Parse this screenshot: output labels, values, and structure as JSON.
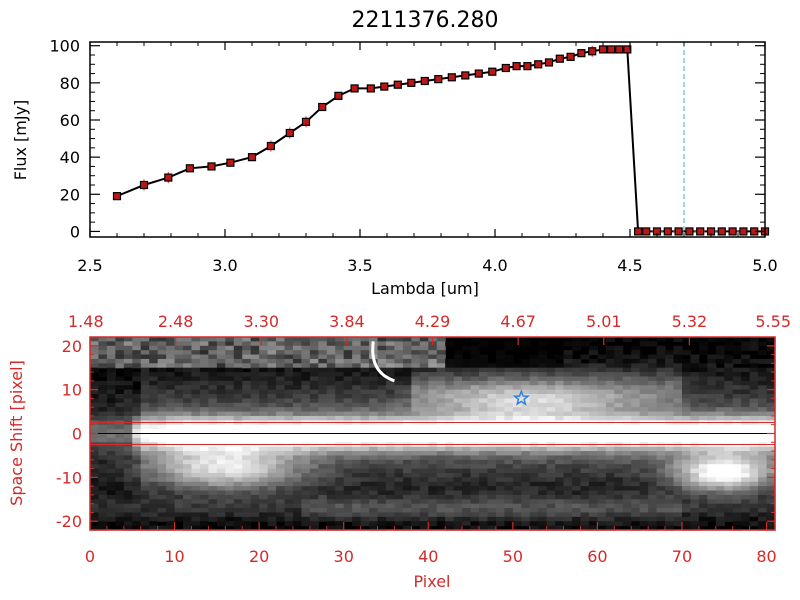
{
  "colors": {
    "red": "#d42a2a",
    "cyan": "#4fa8c8",
    "marker": "#b81818",
    "star": "#2f7fe0"
  },
  "chart_data": [
    {
      "type": "line",
      "title": "2211376.280",
      "xlabel": "Lambda [um]",
      "ylabel": "Flux [mJy]",
      "xlim": [
        2.5,
        5.0
      ],
      "ylim": [
        -3,
        102
      ],
      "xticks": [
        "2.5",
        "3.0",
        "3.5",
        "4.0",
        "4.5",
        "5.0"
      ],
      "yticks": [
        "0",
        "20",
        "40",
        "60",
        "80",
        "100"
      ],
      "xtick_values": [
        2.5,
        3.0,
        3.5,
        4.0,
        4.5,
        5.0
      ],
      "ytick_values": [
        0,
        20,
        40,
        60,
        80,
        100
      ],
      "marker_line": {
        "x": 4.7,
        "style": "dashed"
      },
      "x": [
        2.6,
        2.7,
        2.79,
        2.87,
        2.95,
        3.02,
        3.1,
        3.17,
        3.24,
        3.3,
        3.36,
        3.42,
        3.48,
        3.54,
        3.59,
        3.64,
        3.69,
        3.74,
        3.79,
        3.84,
        3.89,
        3.94,
        3.99,
        4.04,
        4.08,
        4.12,
        4.16,
        4.2,
        4.24,
        4.28,
        4.32,
        4.36,
        4.4,
        4.43,
        4.46,
        4.49,
        4.53,
        4.56,
        4.6,
        4.64,
        4.68,
        4.72,
        4.76,
        4.8,
        4.84,
        4.88,
        4.92,
        4.96,
        5.0
      ],
      "y": [
        19,
        25,
        29,
        34,
        35,
        37,
        40,
        46,
        53,
        59,
        67,
        73,
        77,
        77,
        78,
        79,
        80,
        81,
        82,
        83,
        84,
        85,
        86,
        88,
        89,
        89,
        90,
        91,
        93,
        94,
        96,
        97,
        98,
        98,
        98,
        98,
        0,
        0,
        0,
        0,
        0,
        0,
        0,
        0,
        0,
        0,
        0,
        0,
        0
      ],
      "error": [
        2,
        3,
        3,
        2,
        2,
        2,
        2,
        3,
        3,
        3,
        2,
        1,
        1,
        1,
        1,
        1,
        1,
        1,
        1,
        1,
        1,
        1,
        1,
        1,
        1,
        1,
        1,
        1,
        1,
        2,
        2,
        3,
        2,
        2,
        1,
        1,
        0,
        0,
        0,
        0,
        0,
        0,
        0,
        0,
        0,
        0,
        0,
        0,
        0
      ]
    },
    {
      "type": "heatmap",
      "xlabel": "Pixel",
      "ylabel": "Space Shift [pixel]",
      "xlim": [
        0,
        81
      ],
      "ylim": [
        -22,
        22
      ],
      "xticks": [
        "0",
        "10",
        "20",
        "30",
        "40",
        "50",
        "60",
        "70",
        "80"
      ],
      "xtick_values": [
        0,
        10,
        20,
        30,
        40,
        50,
        60,
        70,
        80
      ],
      "yticks": [
        "-20",
        "-10",
        "0",
        "10",
        "20"
      ],
      "ytick_values": [
        -20,
        -10,
        0,
        10,
        20
      ],
      "top_axis_ticks": [
        "1.48",
        "2.48",
        "3.30",
        "3.84",
        "4.29",
        "4.67",
        "5.01",
        "5.32",
        "5.55"
      ],
      "extraction_window": [
        -2.5,
        2.5
      ],
      "source_marker": {
        "x": 51,
        "y": 8
      }
    }
  ]
}
